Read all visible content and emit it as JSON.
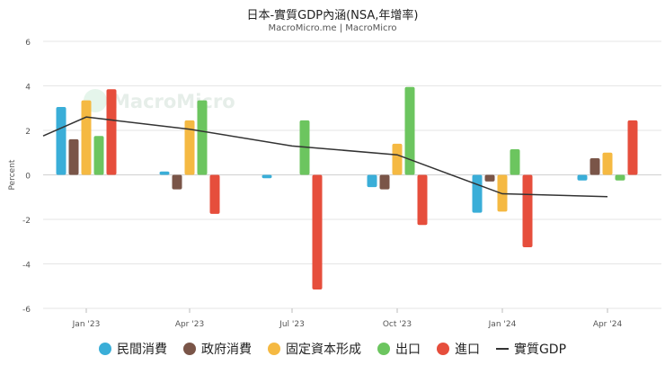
{
  "title": "日本-實質GDP內涵(NSA,年增率)",
  "subtitle": "MacroMicro.me | MacroMicro",
  "watermark": "MacroMicro",
  "colors": {
    "private_consumption": "#3aaed8",
    "government_consumption": "#7a5548",
    "fixed_capital": "#f5b942",
    "exports": "#6cc55f",
    "imports": "#e64e3c",
    "gdp_line": "#333333",
    "grid": "#e6e6e6"
  },
  "chart_data": {
    "type": "bar",
    "ylabel": "Percent",
    "ylim": [
      -6,
      6
    ],
    "yticks": [
      6,
      4,
      2,
      0,
      -2,
      -4,
      -6
    ],
    "categories": [
      "Jan '23",
      "Apr '23",
      "Jul '23",
      "Oct '23",
      "Jan '24",
      "Apr '24"
    ],
    "series": [
      {
        "name": "民間消費",
        "key": "private_consumption",
        "values": [
          3.05,
          0.15,
          -0.15,
          -0.55,
          -1.7,
          -0.25
        ]
      },
      {
        "name": "政府消費",
        "key": "government_consumption",
        "values": [
          1.6,
          -0.65,
          0,
          -0.65,
          -0.3,
          0.75
        ]
      },
      {
        "name": "固定資本形成",
        "key": "fixed_capital",
        "values": [
          3.35,
          2.45,
          0,
          1.4,
          -1.65,
          1.0
        ]
      },
      {
        "name": "出口",
        "key": "exports",
        "values": [
          1.75,
          3.35,
          2.45,
          3.95,
          1.15,
          -0.25
        ]
      },
      {
        "name": "進口",
        "key": "imports",
        "values": [
          3.85,
          -1.75,
          -5.15,
          -2.25,
          -3.25,
          2.45
        ]
      }
    ],
    "line_series": {
      "name": "實質GDP",
      "key": "gdp_line",
      "x": [
        "Oct '22",
        "Jan '23",
        "Apr '23",
        "Jul '23",
        "Oct '23",
        "Jan '24",
        "Apr '24"
      ],
      "values": [
        1.75,
        2.6,
        2.05,
        1.3,
        0.9,
        -0.85,
        -0.98
      ]
    },
    "legend_position": "bottom"
  }
}
